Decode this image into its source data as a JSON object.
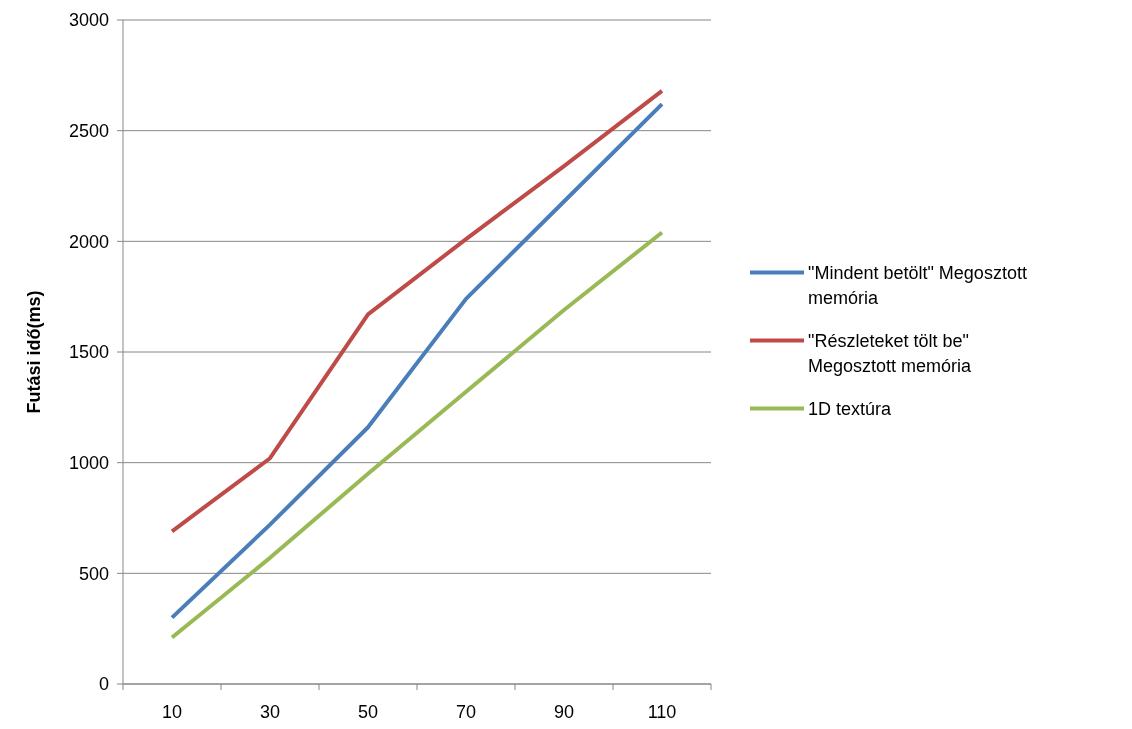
{
  "chart_data": {
    "type": "line",
    "ylabel": "Futási idő(ms)",
    "categories": [
      "10",
      "30",
      "50",
      "70",
      "90",
      "110"
    ],
    "series": [
      {
        "name": "\"Mindent betölt\" Megosztott memória",
        "color": "#4a7ebb",
        "values": [
          300,
          720,
          1160,
          1740,
          2180,
          2620
        ]
      },
      {
        "name": "\"Részleteket tölt be\" Megosztott memória",
        "color": "#be4b48",
        "values": [
          690,
          1020,
          1670,
          2010,
          2340,
          2680
        ]
      },
      {
        "name": "1D textúra",
        "color": "#98b954",
        "values": [
          210,
          570,
          950,
          1320,
          1690,
          2040
        ]
      }
    ],
    "ylim": [
      0,
      3000
    ],
    "yticks": [
      0,
      500,
      1000,
      1500,
      2000,
      2500,
      3000
    ],
    "grid": "y",
    "legend": "right",
    "marker": "none",
    "line_style": "solid"
  }
}
